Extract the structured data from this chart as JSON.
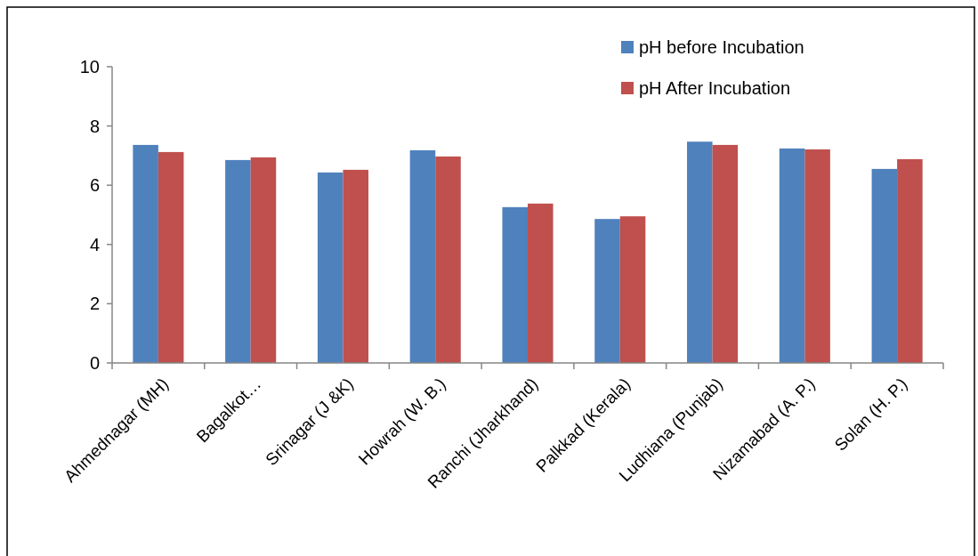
{
  "chart_data": {
    "type": "bar",
    "categories": [
      "Ahmednagar (MH)",
      "Bagalkot…",
      "Srinagar (J &K)",
      "Howrah (W. B.)",
      "Ranchi (Jharkhand)",
      "Palkkad (Kerala)",
      "Ludhiana (Punjab)",
      "Nizamabad (A. P.)",
      "Solan (H. P.)"
    ],
    "series": [
      {
        "name": "pH before Incubation",
        "color": "#4f81bd",
        "values": [
          7.36,
          6.85,
          6.43,
          7.18,
          5.26,
          4.86,
          7.47,
          7.24,
          6.55
        ]
      },
      {
        "name": "pH After Incubation",
        "color": "#c0504d",
        "values": [
          7.12,
          6.94,
          6.52,
          6.97,
          5.38,
          4.95,
          7.36,
          7.21,
          6.88
        ]
      }
    ],
    "ylim": [
      0,
      10
    ],
    "yticks": [
      0,
      2,
      4,
      6,
      8,
      10
    ],
    "grid": false,
    "legend": "top right"
  }
}
